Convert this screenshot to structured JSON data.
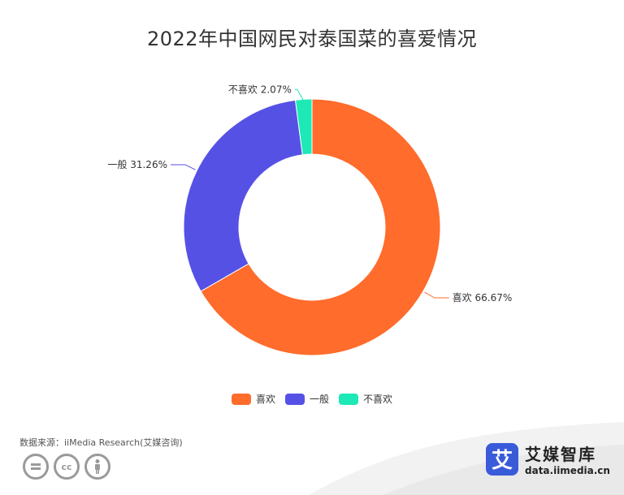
{
  "chart_data": {
    "type": "pie",
    "variant": "donut",
    "title": "2022年中国网民对泰国菜的喜爱情况",
    "categories": [
      "喜欢",
      "一般",
      "不喜欢"
    ],
    "values": [
      66.67,
      31.26,
      2.07
    ],
    "labels": [
      "喜欢 66.67%",
      "一般 31.26%",
      "不喜欢 2.07%"
    ],
    "unit": "%",
    "colors": [
      "#ff6c2c",
      "#5651e5",
      "#1de9b6"
    ],
    "legend_position": "bottom"
  },
  "legend": {
    "items": [
      {
        "label": "喜欢",
        "color": "#ff6c2c"
      },
      {
        "label": "一般",
        "color": "#5651e5"
      },
      {
        "label": "不喜欢",
        "color": "#1de9b6"
      }
    ]
  },
  "footer": {
    "source": "数据来源：iiMedia Research(艾媒咨询)",
    "license_icons": [
      "equals-icon",
      "cc-icon",
      "person-icon"
    ]
  },
  "brand": {
    "logo_char": "艾",
    "name": "艾媒智库",
    "url": "data.iimedia.cn",
    "logo_color": "#3a5bd9"
  }
}
